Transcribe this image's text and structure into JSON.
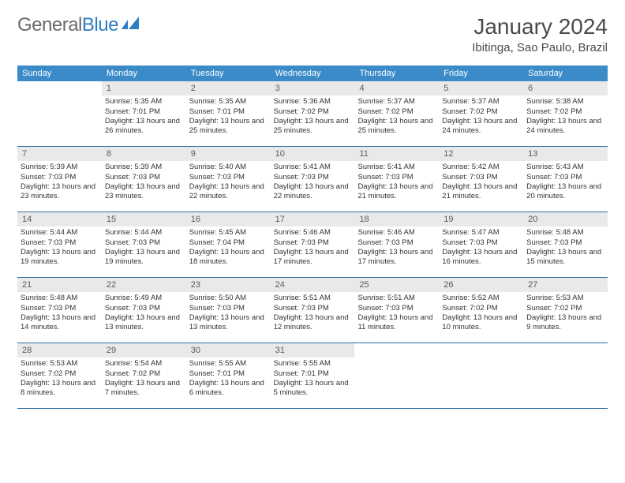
{
  "logo": {
    "part1": "General",
    "part2": "Blue"
  },
  "title": "January 2024",
  "location": "Ibitinga, Sao Paulo, Brazil",
  "colors": {
    "header_bg": "#3b8bc9",
    "daynum_bg": "#e9e9e9",
    "week_border": "#2f6fa3",
    "text": "#333333",
    "logo_grey": "#6b6b6b",
    "logo_blue": "#2f7ec2"
  },
  "dow": [
    "Sunday",
    "Monday",
    "Tuesday",
    "Wednesday",
    "Thursday",
    "Friday",
    "Saturday"
  ],
  "weeks": [
    [
      {
        "n": "",
        "sr": "",
        "ss": "",
        "dl": ""
      },
      {
        "n": "1",
        "sr": "Sunrise: 5:35 AM",
        "ss": "Sunset: 7:01 PM",
        "dl": "Daylight: 13 hours and 26 minutes."
      },
      {
        "n": "2",
        "sr": "Sunrise: 5:35 AM",
        "ss": "Sunset: 7:01 PM",
        "dl": "Daylight: 13 hours and 25 minutes."
      },
      {
        "n": "3",
        "sr": "Sunrise: 5:36 AM",
        "ss": "Sunset: 7:02 PM",
        "dl": "Daylight: 13 hours and 25 minutes."
      },
      {
        "n": "4",
        "sr": "Sunrise: 5:37 AM",
        "ss": "Sunset: 7:02 PM",
        "dl": "Daylight: 13 hours and 25 minutes."
      },
      {
        "n": "5",
        "sr": "Sunrise: 5:37 AM",
        "ss": "Sunset: 7:02 PM",
        "dl": "Daylight: 13 hours and 24 minutes."
      },
      {
        "n": "6",
        "sr": "Sunrise: 5:38 AM",
        "ss": "Sunset: 7:02 PM",
        "dl": "Daylight: 13 hours and 24 minutes."
      }
    ],
    [
      {
        "n": "7",
        "sr": "Sunrise: 5:39 AM",
        "ss": "Sunset: 7:03 PM",
        "dl": "Daylight: 13 hours and 23 minutes."
      },
      {
        "n": "8",
        "sr": "Sunrise: 5:39 AM",
        "ss": "Sunset: 7:03 PM",
        "dl": "Daylight: 13 hours and 23 minutes."
      },
      {
        "n": "9",
        "sr": "Sunrise: 5:40 AM",
        "ss": "Sunset: 7:03 PM",
        "dl": "Daylight: 13 hours and 22 minutes."
      },
      {
        "n": "10",
        "sr": "Sunrise: 5:41 AM",
        "ss": "Sunset: 7:03 PM",
        "dl": "Daylight: 13 hours and 22 minutes."
      },
      {
        "n": "11",
        "sr": "Sunrise: 5:41 AM",
        "ss": "Sunset: 7:03 PM",
        "dl": "Daylight: 13 hours and 21 minutes."
      },
      {
        "n": "12",
        "sr": "Sunrise: 5:42 AM",
        "ss": "Sunset: 7:03 PM",
        "dl": "Daylight: 13 hours and 21 minutes."
      },
      {
        "n": "13",
        "sr": "Sunrise: 5:43 AM",
        "ss": "Sunset: 7:03 PM",
        "dl": "Daylight: 13 hours and 20 minutes."
      }
    ],
    [
      {
        "n": "14",
        "sr": "Sunrise: 5:44 AM",
        "ss": "Sunset: 7:03 PM",
        "dl": "Daylight: 13 hours and 19 minutes."
      },
      {
        "n": "15",
        "sr": "Sunrise: 5:44 AM",
        "ss": "Sunset: 7:03 PM",
        "dl": "Daylight: 13 hours and 19 minutes."
      },
      {
        "n": "16",
        "sr": "Sunrise: 5:45 AM",
        "ss": "Sunset: 7:04 PM",
        "dl": "Daylight: 13 hours and 18 minutes."
      },
      {
        "n": "17",
        "sr": "Sunrise: 5:46 AM",
        "ss": "Sunset: 7:03 PM",
        "dl": "Daylight: 13 hours and 17 minutes."
      },
      {
        "n": "18",
        "sr": "Sunrise: 5:46 AM",
        "ss": "Sunset: 7:03 PM",
        "dl": "Daylight: 13 hours and 17 minutes."
      },
      {
        "n": "19",
        "sr": "Sunrise: 5:47 AM",
        "ss": "Sunset: 7:03 PM",
        "dl": "Daylight: 13 hours and 16 minutes."
      },
      {
        "n": "20",
        "sr": "Sunrise: 5:48 AM",
        "ss": "Sunset: 7:03 PM",
        "dl": "Daylight: 13 hours and 15 minutes."
      }
    ],
    [
      {
        "n": "21",
        "sr": "Sunrise: 5:48 AM",
        "ss": "Sunset: 7:03 PM",
        "dl": "Daylight: 13 hours and 14 minutes."
      },
      {
        "n": "22",
        "sr": "Sunrise: 5:49 AM",
        "ss": "Sunset: 7:03 PM",
        "dl": "Daylight: 13 hours and 13 minutes."
      },
      {
        "n": "23",
        "sr": "Sunrise: 5:50 AM",
        "ss": "Sunset: 7:03 PM",
        "dl": "Daylight: 13 hours and 13 minutes."
      },
      {
        "n": "24",
        "sr": "Sunrise: 5:51 AM",
        "ss": "Sunset: 7:03 PM",
        "dl": "Daylight: 13 hours and 12 minutes."
      },
      {
        "n": "25",
        "sr": "Sunrise: 5:51 AM",
        "ss": "Sunset: 7:03 PM",
        "dl": "Daylight: 13 hours and 11 minutes."
      },
      {
        "n": "26",
        "sr": "Sunrise: 5:52 AM",
        "ss": "Sunset: 7:02 PM",
        "dl": "Daylight: 13 hours and 10 minutes."
      },
      {
        "n": "27",
        "sr": "Sunrise: 5:53 AM",
        "ss": "Sunset: 7:02 PM",
        "dl": "Daylight: 13 hours and 9 minutes."
      }
    ],
    [
      {
        "n": "28",
        "sr": "Sunrise: 5:53 AM",
        "ss": "Sunset: 7:02 PM",
        "dl": "Daylight: 13 hours and 8 minutes."
      },
      {
        "n": "29",
        "sr": "Sunrise: 5:54 AM",
        "ss": "Sunset: 7:02 PM",
        "dl": "Daylight: 13 hours and 7 minutes."
      },
      {
        "n": "30",
        "sr": "Sunrise: 5:55 AM",
        "ss": "Sunset: 7:01 PM",
        "dl": "Daylight: 13 hours and 6 minutes."
      },
      {
        "n": "31",
        "sr": "Sunrise: 5:55 AM",
        "ss": "Sunset: 7:01 PM",
        "dl": "Daylight: 13 hours and 5 minutes."
      },
      {
        "n": "",
        "sr": "",
        "ss": "",
        "dl": ""
      },
      {
        "n": "",
        "sr": "",
        "ss": "",
        "dl": ""
      },
      {
        "n": "",
        "sr": "",
        "ss": "",
        "dl": ""
      }
    ]
  ]
}
